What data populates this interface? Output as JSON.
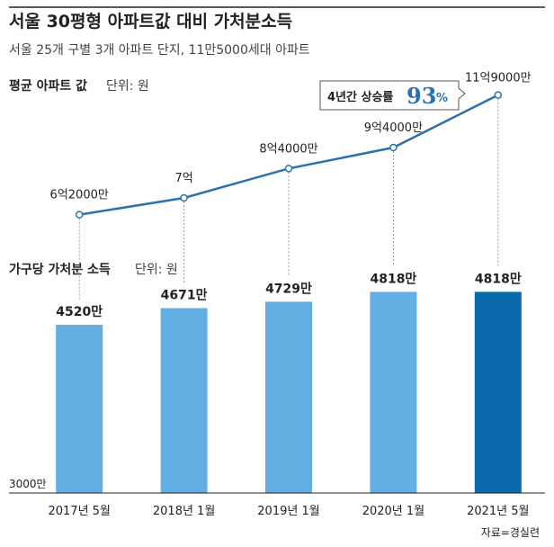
{
  "title": "서울 30평형 아파트값 대비 가처분소득",
  "subtitle": "서울 25개 구별 3개 아파트 단지, 11만5000세대 아파트",
  "source": "자료=경실련",
  "colors": {
    "line": "#2a72ad",
    "bar": "#63aee3",
    "bar_highlight": "#0a6aaa",
    "text": "#222222",
    "muted": "#444444",
    "leader": "#9a9a9a"
  },
  "chart_data": [
    {
      "type": "line",
      "title": "평균 아파트 값",
      "unit_label": "단위: 원",
      "categories": [
        "2017년 5월",
        "2018년 1월",
        "2019년 1월",
        "2020년 1월",
        "2021년 5월"
      ],
      "values": [
        62000,
        70000,
        84000,
        94000,
        119000
      ],
      "value_unit": "만원",
      "data_labels": [
        "6억2000만",
        "7억",
        "8억4000만",
        "9억4000만",
        "11억9000만"
      ],
      "callout": {
        "prefix": "4년간 상승률",
        "value": "93",
        "suffix": "%"
      }
    },
    {
      "type": "bar",
      "title": "가구당 가처분 소득",
      "unit_label": "단위: 원",
      "categories": [
        "2017년 5월",
        "2018년 1월",
        "2019년 1월",
        "2020년 1월",
        "2021년 5월"
      ],
      "values": [
        4520,
        4671,
        4729,
        4818,
        4818
      ],
      "value_unit": "만원",
      "data_labels": [
        "4520만",
        "4671만",
        "4729만",
        "4818만",
        "4818만"
      ],
      "ylim": [
        3000,
        5000
      ],
      "baseline_label": "3000만",
      "highlight_index": 4
    }
  ]
}
